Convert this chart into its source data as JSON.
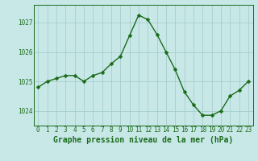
{
  "hours": [
    0,
    1,
    2,
    3,
    4,
    5,
    6,
    7,
    8,
    9,
    10,
    11,
    12,
    13,
    14,
    15,
    16,
    17,
    18,
    19,
    20,
    21,
    22,
    23
  ],
  "pressure": [
    1024.8,
    1025.0,
    1025.1,
    1025.2,
    1025.2,
    1025.0,
    1025.2,
    1025.3,
    1025.6,
    1025.85,
    1026.55,
    1027.25,
    1027.1,
    1026.6,
    1026.0,
    1025.4,
    1024.65,
    1024.2,
    1023.85,
    1023.85,
    1024.0,
    1024.5,
    1024.7,
    1025.0
  ],
  "line_color": "#1a6b1a",
  "marker_color": "#1a6b1a",
  "bg_color": "#c8e8e8",
  "grid_color": "#a0c8c8",
  "ylabel_ticks": [
    1024,
    1025,
    1026,
    1027
  ],
  "xlabel_label": "Graphe pression niveau de la mer (hPa)",
  "xlabel_fontsize": 7,
  "tick_fontsize": 5.5,
  "ylim": [
    1023.5,
    1027.6
  ],
  "xlim": [
    -0.5,
    23.5
  ],
  "line_width": 1.0,
  "marker_size": 2.5
}
